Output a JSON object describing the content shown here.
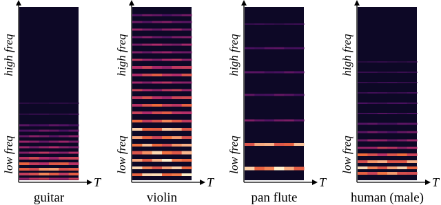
{
  "panels": [
    {
      "label": "guitar",
      "high": "high freq",
      "low": "low freq",
      "time": "T"
    },
    {
      "label": "violin",
      "high": "high freq",
      "low": "low freq",
      "time": "T"
    },
    {
      "label": "pan flute",
      "high": "high freq",
      "low": "low freq",
      "time": "T"
    },
    {
      "label": "human (male)",
      "high": "high freq",
      "low": "low freq",
      "time": "T"
    }
  ]
}
